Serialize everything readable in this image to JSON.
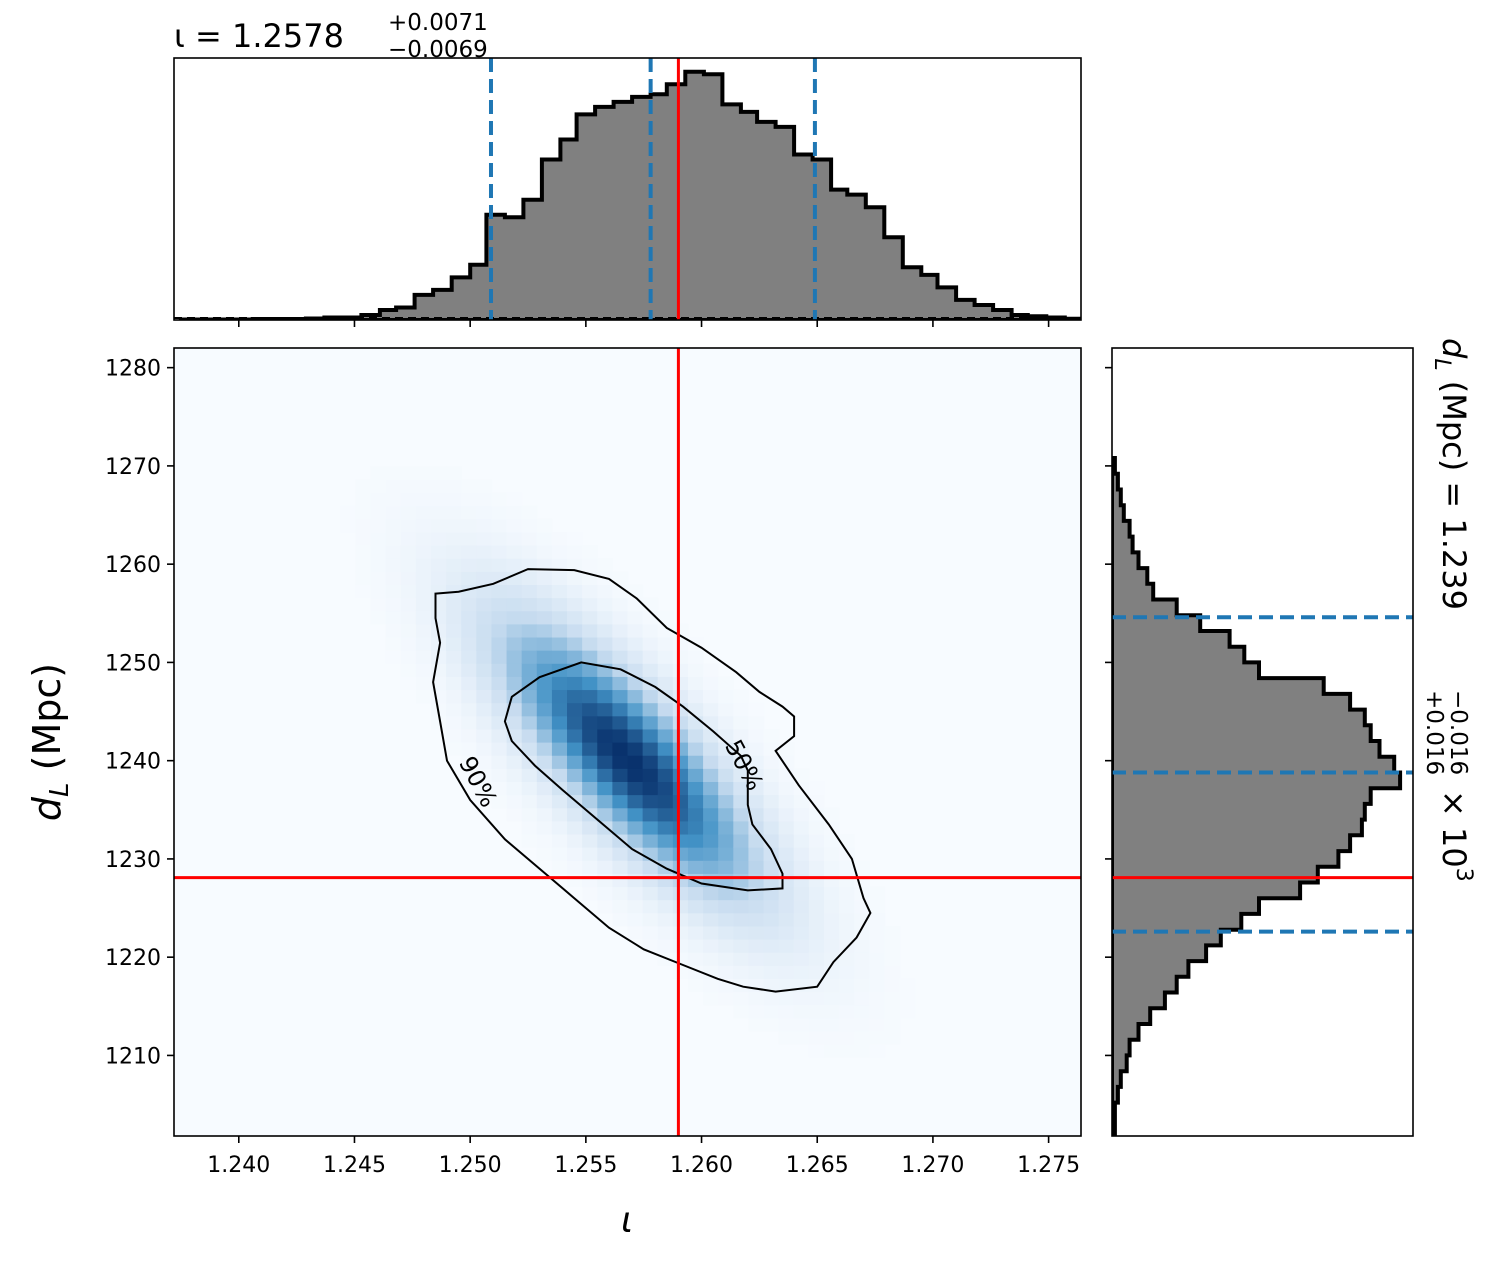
{
  "chart_data": {
    "type": "corner",
    "parameters": [
      "ι",
      "d_L (Mpc)"
    ],
    "truth": {
      "iota": 1.259,
      "dL": 1228.1
    },
    "top_histogram": {
      "title": {
        "main": "ι = 1.2578",
        "sup": "+0.0071",
        "sub": "−0.0069"
      },
      "quantile_lines": [
        1.2509,
        1.2578,
        1.2649
      ],
      "truth_line": 1.259,
      "bins": [
        1.2375,
        1.2383,
        1.2391,
        1.2398,
        1.2406,
        1.2414,
        1.2422,
        1.2429,
        1.2437,
        1.2445,
        1.2453,
        1.2461,
        1.2468,
        1.2476,
        1.2484,
        1.2492,
        1.25,
        1.2507,
        1.2515,
        1.2523,
        1.2531,
        1.2539,
        1.2546,
        1.2554,
        1.2562,
        1.257,
        1.2578,
        1.2585,
        1.2593,
        1.2601,
        1.2609,
        1.2617,
        1.2624,
        1.2632,
        1.264,
        1.2648,
        1.2656,
        1.2663,
        1.2671,
        1.2679,
        1.2687,
        1.2695,
        1.2702,
        1.271,
        1.2718,
        1.2726,
        1.2734,
        1.2741,
        1.2749,
        1.2757,
        1.2763
      ],
      "counts": [
        0.002,
        0.002,
        0.002,
        0.002,
        0.004,
        0.004,
        0.004,
        0.006,
        0.01,
        0.01,
        0.02,
        0.04,
        0.05,
        0.1,
        0.12,
        0.17,
        0.22,
        0.42,
        0.41,
        0.48,
        0.64,
        0.72,
        0.82,
        0.85,
        0.87,
        0.89,
        0.9,
        0.94,
        0.99,
        0.98,
        0.86,
        0.83,
        0.79,
        0.77,
        0.66,
        0.64,
        0.52,
        0.5,
        0.45,
        0.33,
        0.21,
        0.18,
        0.13,
        0.08,
        0.06,
        0.04,
        0.02,
        0.015,
        0.01,
        0.005
      ]
    },
    "joint": {
      "xlim": [
        1.2372,
        1.2764
      ],
      "ylim": [
        1201.8,
        1282.0
      ],
      "xticks": [
        "1.240",
        "1.245",
        "1.250",
        "1.255",
        "1.260",
        "1.265",
        "1.270",
        "1.275"
      ],
      "xtick_values": [
        1.24,
        1.245,
        1.25,
        1.255,
        1.26,
        1.265,
        1.27,
        1.275
      ],
      "yticks": [
        "1210",
        "1220",
        "1230",
        "1240",
        "1250",
        "1260",
        "1270",
        "1280"
      ],
      "ytick_values": [
        1210,
        1220,
        1230,
        1240,
        1250,
        1260,
        1270,
        1280
      ],
      "xlabel": "ι",
      "ylabel": "d_L (Mpc)",
      "ylabel_main": "d",
      "ylabel_sub": "L",
      "ylabel_rest": " (Mpc)",
      "density": {
        "center": [
          1.2568,
          1240.2
        ],
        "sigma_x": 0.004,
        "sigma_y": 10.0,
        "correlation": -0.8
      },
      "contours": [
        {
          "label": "50%",
          "points": [
            [
              1.2518,
              1246.5
            ],
            [
              1.253,
              1248.5
            ],
            [
              1.2548,
              1250.0
            ],
            [
              1.2565,
              1249.3
            ],
            [
              1.258,
              1247.5
            ],
            [
              1.2592,
              1245.5
            ],
            [
              1.2605,
              1243.0
            ],
            [
              1.2617,
              1240.5
            ],
            [
              1.262,
              1239.0
            ],
            [
              1.262,
              1235.5
            ],
            [
              1.2622,
              1233.5
            ],
            [
              1.263,
              1231.0
            ],
            [
              1.2635,
              1228.5
            ],
            [
              1.2635,
              1227.0
            ],
            [
              1.262,
              1226.8
            ],
            [
              1.26,
              1227.5
            ],
            [
              1.2585,
              1229.0
            ],
            [
              1.257,
              1231.0
            ],
            [
              1.2555,
              1234.0
            ],
            [
              1.254,
              1237.0
            ],
            [
              1.2528,
              1239.5
            ],
            [
              1.2518,
              1242.0
            ],
            [
              1.2515,
              1244.0
            ]
          ]
        },
        {
          "label": "90%",
          "points": [
            [
              1.2485,
              1257.0
            ],
            [
              1.2495,
              1257.2
            ],
            [
              1.251,
              1258.0
            ],
            [
              1.2525,
              1259.5
            ],
            [
              1.2545,
              1259.4
            ],
            [
              1.256,
              1258.5
            ],
            [
              1.2572,
              1256.5
            ],
            [
              1.2585,
              1253.5
            ],
            [
              1.26,
              1251.5
            ],
            [
              1.2615,
              1249.0
            ],
            [
              1.2625,
              1247.0
            ],
            [
              1.2635,
              1245.5
            ],
            [
              1.264,
              1244.5
            ],
            [
              1.264,
              1242.5
            ],
            [
              1.2632,
              1241.0
            ],
            [
              1.2642,
              1237.5
            ],
            [
              1.2655,
              1233.5
            ],
            [
              1.2665,
              1230.0
            ],
            [
              1.267,
              1226.0
            ],
            [
              1.2673,
              1224.5
            ],
            [
              1.2667,
              1222.0
            ],
            [
              1.2657,
              1219.5
            ],
            [
              1.265,
              1217.0
            ],
            [
              1.2632,
              1216.5
            ],
            [
              1.2618,
              1217.0
            ],
            [
              1.2607,
              1217.8
            ],
            [
              1.2592,
              1219.2
            ],
            [
              1.2575,
              1220.8
            ],
            [
              1.256,
              1223.0
            ],
            [
              1.2545,
              1226.0
            ],
            [
              1.253,
              1229.0
            ],
            [
              1.2515,
              1232.0
            ],
            [
              1.25,
              1236.0
            ],
            [
              1.249,
              1240.0
            ],
            [
              1.2487,
              1244.0
            ],
            [
              1.2484,
              1248.0
            ],
            [
              1.2487,
              1252.0
            ],
            [
              1.2485,
              1254.5
            ]
          ]
        }
      ],
      "contour_labels": [
        {
          "text": "50%",
          "x": 1.2618,
          "y": 1239.5,
          "angle": 62
        },
        {
          "text": "90%",
          "x": 1.2503,
          "y": 1237.8,
          "angle": 62
        }
      ]
    },
    "right_histogram": {
      "title_main": "d",
      "title_sub": "L",
      "title_rest": " (Mpc) = 1.239",
      "title_sup": "+0.016",
      "title_subscript": "−0.016",
      "title_tail": " × 10",
      "title_exp": "3",
      "quantile_lines": [
        1222.6,
        1238.8,
        1254.6
      ],
      "truth_line": 1228.1,
      "bins": [
        1202.0,
        1203.6,
        1205.2,
        1206.8,
        1208.4,
        1210.0,
        1211.6,
        1213.2,
        1214.8,
        1216.4,
        1218.0,
        1219.6,
        1221.2,
        1222.8,
        1224.4,
        1226.0,
        1227.6,
        1229.2,
        1230.8,
        1232.4,
        1234.0,
        1235.6,
        1237.2,
        1238.8,
        1240.4,
        1242.0,
        1243.6,
        1245.2,
        1246.8,
        1248.4,
        1250.0,
        1251.6,
        1253.2,
        1254.8,
        1256.4,
        1258.0,
        1259.6,
        1261.2,
        1262.8,
        1264.4,
        1266.0,
        1267.6,
        1269.2,
        1270.8
      ],
      "counts": [
        0.01,
        0.01,
        0.02,
        0.03,
        0.05,
        0.06,
        0.09,
        0.13,
        0.18,
        0.22,
        0.26,
        0.32,
        0.37,
        0.44,
        0.5,
        0.64,
        0.7,
        0.77,
        0.81,
        0.85,
        0.86,
        0.88,
        0.98,
        0.96,
        0.91,
        0.88,
        0.86,
        0.81,
        0.72,
        0.5,
        0.45,
        0.4,
        0.3,
        0.22,
        0.14,
        0.12,
        0.09,
        0.07,
        0.06,
        0.04,
        0.03,
        0.02,
        0.01
      ]
    },
    "colors": {
      "hist_fill": "#808080",
      "hist_edge": "#000000",
      "quantile": "#1f77b4",
      "truth": "#ff0000",
      "density_low": "#f7fbff",
      "density_high": "#08306b"
    }
  }
}
